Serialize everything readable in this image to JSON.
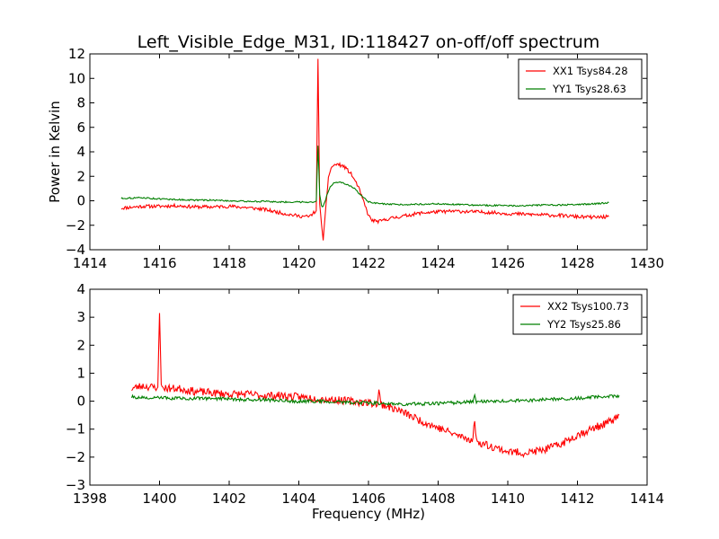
{
  "figure": {
    "title": "Left_Visible_Edge_M31, ID:118427 on-off/off spectrum"
  },
  "colors": {
    "red": "#ff0000",
    "green": "#007f00",
    "axis": "#000000"
  },
  "chart_data": [
    {
      "type": "line",
      "title": "Left_Visible_Edge_M31, ID:118427 on-off/off spectrum",
      "xlabel": "",
      "ylabel": "Power in Kelvin",
      "xlim": [
        1414,
        1430
      ],
      "ylim": [
        -4,
        12
      ],
      "xticks": [
        "1414",
        "1416",
        "1418",
        "1420",
        "1422",
        "1424",
        "1426",
        "1428",
        "1430"
      ],
      "yticks": [
        "−4",
        "−2",
        "0",
        "2",
        "4",
        "6",
        "8",
        "10",
        "12"
      ],
      "grid": false,
      "legend_position": "top-right",
      "series": [
        {
          "name": "XX1 Tsys84.28",
          "color": "#ff0000",
          "points": [
            [
              1414.9,
              -0.6
            ],
            [
              1415.5,
              -0.45
            ],
            [
              1416,
              -0.45
            ],
            [
              1416.5,
              -0.4
            ],
            [
              1417,
              -0.5
            ],
            [
              1417.5,
              -0.5
            ],
            [
              1418,
              -0.45
            ],
            [
              1418.5,
              -0.55
            ],
            [
              1419,
              -0.7
            ],
            [
              1419.5,
              -1.0
            ],
            [
              1420,
              -1.25
            ],
            [
              1420.3,
              -1.3
            ],
            [
              1420.5,
              -0.8
            ],
            [
              1420.55,
              11.6
            ],
            [
              1420.6,
              -0.3
            ],
            [
              1420.65,
              -2.0
            ],
            [
              1420.7,
              -3.1
            ],
            [
              1420.75,
              -1.5
            ],
            [
              1420.8,
              0.2
            ],
            [
              1420.85,
              2.0
            ],
            [
              1420.95,
              2.8
            ],
            [
              1421.1,
              3.0
            ],
            [
              1421.3,
              2.8
            ],
            [
              1421.5,
              2.2
            ],
            [
              1421.7,
              1.2
            ],
            [
              1421.85,
              0.0
            ],
            [
              1422,
              -1.2
            ],
            [
              1422.1,
              -1.6
            ],
            [
              1422.3,
              -1.7
            ],
            [
              1422.6,
              -1.45
            ],
            [
              1423,
              -1.25
            ],
            [
              1423.5,
              -1.0
            ],
            [
              1424,
              -0.9
            ],
            [
              1424.5,
              -0.85
            ],
            [
              1425,
              -0.9
            ],
            [
              1425.5,
              -0.95
            ],
            [
              1426,
              -1.05
            ],
            [
              1426.5,
              -1.1
            ],
            [
              1427,
              -1.15
            ],
            [
              1427.5,
              -1.2
            ],
            [
              1428,
              -1.3
            ],
            [
              1428.5,
              -1.35
            ],
            [
              1428.9,
              -1.3
            ]
          ]
        },
        {
          "name": "YY1 Tsys28.63",
          "color": "#007f00",
          "points": [
            [
              1414.9,
              0.2
            ],
            [
              1415.5,
              0.25
            ],
            [
              1416,
              0.15
            ],
            [
              1416.5,
              0.1
            ],
            [
              1417,
              0.05
            ],
            [
              1417.5,
              0.05
            ],
            [
              1418,
              0.0
            ],
            [
              1418.5,
              -0.05
            ],
            [
              1419,
              -0.05
            ],
            [
              1419.5,
              -0.1
            ],
            [
              1420,
              -0.1
            ],
            [
              1420.4,
              -0.1
            ],
            [
              1420.5,
              0.0
            ],
            [
              1420.55,
              4.5
            ],
            [
              1420.6,
              0.5
            ],
            [
              1420.65,
              -0.4
            ],
            [
              1420.7,
              -0.5
            ],
            [
              1420.8,
              0.4
            ],
            [
              1420.9,
              1.1
            ],
            [
              1421.0,
              1.5
            ],
            [
              1421.2,
              1.5
            ],
            [
              1421.4,
              1.3
            ],
            [
              1421.6,
              1.0
            ],
            [
              1421.8,
              0.4
            ],
            [
              1422.0,
              -0.1
            ],
            [
              1422.2,
              -0.2
            ],
            [
              1422.6,
              -0.3
            ],
            [
              1423,
              -0.3
            ],
            [
              1424,
              -0.25
            ],
            [
              1425,
              -0.35
            ],
            [
              1426,
              -0.4
            ],
            [
              1426.5,
              -0.4
            ],
            [
              1427,
              -0.35
            ],
            [
              1427.5,
              -0.35
            ],
            [
              1428,
              -0.3
            ],
            [
              1428.5,
              -0.25
            ],
            [
              1428.9,
              -0.15
            ]
          ]
        }
      ]
    },
    {
      "type": "line",
      "title": "",
      "xlabel": "Frequency (MHz)",
      "ylabel": "",
      "xlim": [
        1398,
        1414
      ],
      "ylim": [
        -3,
        4
      ],
      "xticks": [
        "1398",
        "1400",
        "1402",
        "1404",
        "1406",
        "1408",
        "1410",
        "1412",
        "1414"
      ],
      "yticks": [
        "−3",
        "−2",
        "−1",
        "0",
        "1",
        "2",
        "3",
        "4"
      ],
      "grid": false,
      "legend_position": "top-right",
      "series": [
        {
          "name": "XX2 Tsys100.73",
          "color": "#ff0000",
          "points": [
            [
              1399.2,
              0.45
            ],
            [
              1399.5,
              0.55
            ],
            [
              1399.8,
              0.5
            ],
            [
              1399.95,
              0.5
            ],
            [
              1400.0,
              3.15
            ],
            [
              1400.05,
              0.5
            ],
            [
              1400.3,
              0.45
            ],
            [
              1400.6,
              0.45
            ],
            [
              1401,
              0.35
            ],
            [
              1401.5,
              0.3
            ],
            [
              1402,
              0.25
            ],
            [
              1402.5,
              0.25
            ],
            [
              1403,
              0.2
            ],
            [
              1403.5,
              0.2
            ],
            [
              1404,
              0.15
            ],
            [
              1404.5,
              0.1
            ],
            [
              1405,
              0.05
            ],
            [
              1405.5,
              0.0
            ],
            [
              1406,
              -0.05
            ],
            [
              1406.25,
              -0.1
            ],
            [
              1406.3,
              0.4
            ],
            [
              1406.35,
              -0.1
            ],
            [
              1406.6,
              -0.2
            ],
            [
              1407,
              -0.4
            ],
            [
              1407.5,
              -0.7
            ],
            [
              1408,
              -0.95
            ],
            [
              1408.5,
              -1.2
            ],
            [
              1409,
              -1.4
            ],
            [
              1409.05,
              -0.6
            ],
            [
              1409.1,
              -1.45
            ],
            [
              1409.5,
              -1.6
            ],
            [
              1410,
              -1.8
            ],
            [
              1410.5,
              -1.85
            ],
            [
              1411,
              -1.75
            ],
            [
              1411.5,
              -1.55
            ],
            [
              1412,
              -1.2
            ],
            [
              1412.5,
              -0.95
            ],
            [
              1413,
              -0.7
            ],
            [
              1413.2,
              -0.5
            ]
          ]
        },
        {
          "name": "YY2 Tsys25.86",
          "color": "#007f00",
          "points": [
            [
              1399.2,
              0.15
            ],
            [
              1399.8,
              0.1
            ],
            [
              1400,
              0.12
            ],
            [
              1400.5,
              0.1
            ],
            [
              1401,
              0.1
            ],
            [
              1401.5,
              0.1
            ],
            [
              1402,
              0.08
            ],
            [
              1402.5,
              0.05
            ],
            [
              1403,
              0.05
            ],
            [
              1403.5,
              0.02
            ],
            [
              1404,
              0.0
            ],
            [
              1404.5,
              0.0
            ],
            [
              1405,
              -0.02
            ],
            [
              1405.5,
              -0.05
            ],
            [
              1406,
              -0.05
            ],
            [
              1406.5,
              -0.1
            ],
            [
              1407,
              -0.1
            ],
            [
              1407.5,
              -0.1
            ],
            [
              1408,
              -0.08
            ],
            [
              1408.5,
              -0.05
            ],
            [
              1409,
              -0.02
            ],
            [
              1409.05,
              0.25
            ],
            [
              1409.1,
              -0.02
            ],
            [
              1409.5,
              0.0
            ],
            [
              1410,
              0.0
            ],
            [
              1410.5,
              0.03
            ],
            [
              1411,
              0.05
            ],
            [
              1411.5,
              0.08
            ],
            [
              1412,
              0.1
            ],
            [
              1412.5,
              0.15
            ],
            [
              1413,
              0.18
            ],
            [
              1413.2,
              0.2
            ]
          ]
        }
      ]
    }
  ]
}
